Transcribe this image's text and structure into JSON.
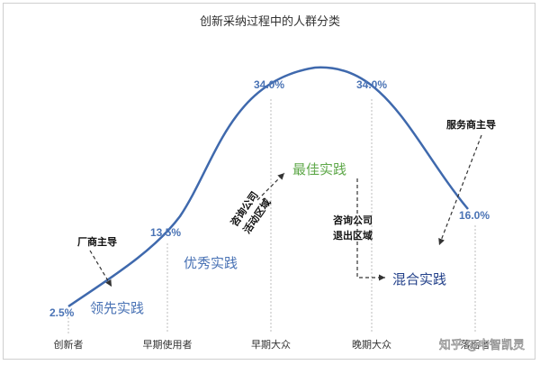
{
  "title": "创新采纳过程中的人群分类",
  "colors": {
    "curve": "#3f69ad",
    "value_label": "#4a73b5",
    "guide_line": "#bdbdbd",
    "dashed_arrow": "#333333",
    "green_text": "#5fa84a",
    "navy_text": "#23418a"
  },
  "segments": [
    {
      "label": "创新者",
      "value": "2.5%"
    },
    {
      "label": "早期使用者",
      "value": "13.5%"
    },
    {
      "label": "早期大众",
      "value": "34.0%"
    },
    {
      "label": "晚期大众",
      "value": "34.0%"
    },
    {
      "label": "落后者",
      "value": "16.0%"
    }
  ],
  "practices": {
    "leading": "领先实践",
    "excellent": "优秀实践",
    "best": "最佳实践",
    "mixed": "混合实践"
  },
  "drivers": {
    "manufacturer": "厂商主导",
    "service_provider": "服务商主导",
    "consulting_active": [
      "咨询公司",
      "活动区域"
    ],
    "consulting_exit": [
      "咨询公司",
      "退出区域"
    ]
  },
  "watermark": "知乎 @中智凯灵"
}
